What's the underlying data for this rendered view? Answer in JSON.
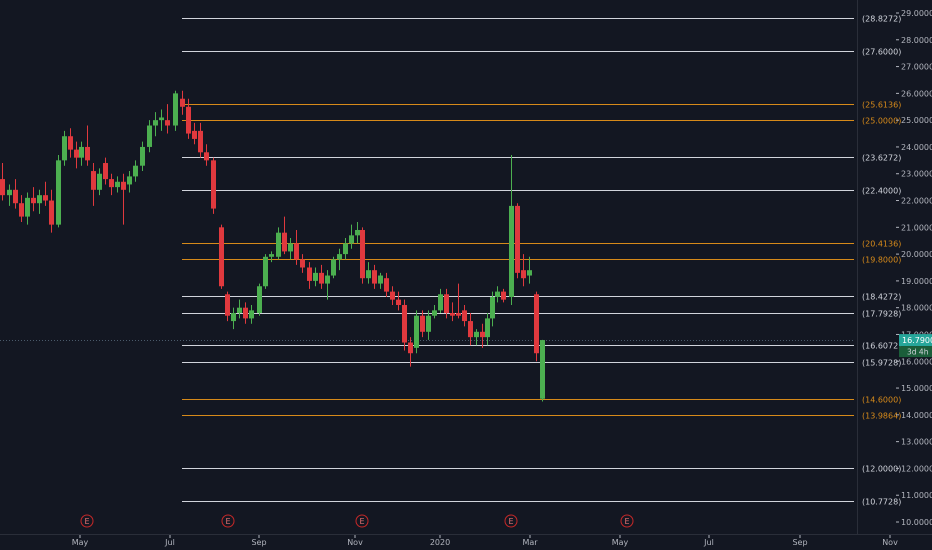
{
  "colors": {
    "background": "#131722",
    "up": "#4caf50",
    "down": "#e0393e",
    "white_level": "#d1d4dc",
    "orange_level": "#d68a1a",
    "axis_text": "#b2b5be",
    "price_tag": "#26a69a",
    "earnings": "#c62828"
  },
  "chart_data": {
    "type": "candlestick",
    "ylim": [
      9.5,
      29.3
    ],
    "y_ticks": [
      "29.0000",
      "28.0000",
      "27.0000",
      "26.0000",
      "25.0000",
      "24.0000",
      "23.0000",
      "22.0000",
      "21.0000",
      "20.0000",
      "19.0000",
      "18.0000",
      "17.0000",
      "16.0000",
      "15.0000",
      "14.0000",
      "13.0000",
      "12.0000",
      "11.0000",
      "10.0000"
    ],
    "x_ticks": [
      {
        "label": "May",
        "x": 80
      },
      {
        "label": "Jul",
        "x": 170
      },
      {
        "label": "Sep",
        "x": 259
      },
      {
        "label": "Nov",
        "x": 355
      },
      {
        "label": "2020",
        "x": 440
      },
      {
        "label": "Mar",
        "x": 530
      },
      {
        "label": "May",
        "x": 620
      },
      {
        "label": "Jul",
        "x": 709
      },
      {
        "label": "Sep",
        "x": 800
      },
      {
        "label": "Nov",
        "x": 890
      }
    ],
    "levels": [
      {
        "value": 28.8272,
        "label": "(28.8272)",
        "color": "white"
      },
      {
        "value": 27.6,
        "label": "(27.6000)",
        "color": "white"
      },
      {
        "value": 25.6136,
        "label": "(25.6136)",
        "color": "orange"
      },
      {
        "value": 25.0,
        "label": "(25.0000)",
        "color": "orange"
      },
      {
        "value": 23.6272,
        "label": "(23.6272)",
        "color": "white"
      },
      {
        "value": 22.4,
        "label": "(22.4000)",
        "color": "white"
      },
      {
        "value": 20.4136,
        "label": "(20.4136)",
        "color": "orange"
      },
      {
        "value": 19.8,
        "label": "(19.8000)",
        "color": "orange"
      },
      {
        "value": 18.4272,
        "label": "(18.4272)",
        "color": "white"
      },
      {
        "value": 17.7928,
        "label": "(17.7928)",
        "color": "white"
      },
      {
        "value": 16.6072,
        "label": "(16.6072)",
        "color": "white"
      },
      {
        "value": 15.9728,
        "label": "(15.9728)",
        "color": "white"
      },
      {
        "value": 14.6,
        "label": "(14.6000)",
        "color": "orange"
      },
      {
        "value": 13.9864,
        "label": "(13.9864)",
        "color": "orange"
      },
      {
        "value": 12.0,
        "label": "(12.0000)",
        "color": "white"
      },
      {
        "value": 10.7728,
        "label": "(10.7728)",
        "color": "white"
      }
    ],
    "current_price": {
      "value": 16.79,
      "label": "16.7900",
      "timer": "3d 4h"
    },
    "earnings_markers": {
      "label": "E",
      "x": [
        87,
        228,
        362,
        511,
        627
      ]
    },
    "candles": [
      {
        "x": 2,
        "o": 22.8,
        "h": 23.4,
        "l": 22.0,
        "c": 22.2
      },
      {
        "x": 9,
        "o": 22.2,
        "h": 22.6,
        "l": 21.8,
        "c": 22.4
      },
      {
        "x": 15,
        "o": 22.4,
        "h": 22.8,
        "l": 21.7,
        "c": 21.9
      },
      {
        "x": 21,
        "o": 21.9,
        "h": 22.2,
        "l": 21.2,
        "c": 21.4
      },
      {
        "x": 27,
        "o": 21.4,
        "h": 22.3,
        "l": 21.1,
        "c": 22.1
      },
      {
        "x": 33,
        "o": 22.1,
        "h": 22.5,
        "l": 21.6,
        "c": 21.9
      },
      {
        "x": 39,
        "o": 21.9,
        "h": 22.4,
        "l": 21.5,
        "c": 22.2
      },
      {
        "x": 45,
        "o": 22.2,
        "h": 22.7,
        "l": 21.8,
        "c": 22.0
      },
      {
        "x": 51,
        "o": 22.0,
        "h": 22.4,
        "l": 20.8,
        "c": 21.1
      },
      {
        "x": 58,
        "o": 21.1,
        "h": 23.7,
        "l": 21.0,
        "c": 23.5
      },
      {
        "x": 64,
        "o": 23.5,
        "h": 24.6,
        "l": 23.3,
        "c": 24.4
      },
      {
        "x": 70,
        "o": 24.4,
        "h": 24.7,
        "l": 23.6,
        "c": 23.9
      },
      {
        "x": 76,
        "o": 23.9,
        "h": 24.2,
        "l": 23.2,
        "c": 23.6
      },
      {
        "x": 81,
        "o": 23.6,
        "h": 24.2,
        "l": 23.3,
        "c": 24.0
      },
      {
        "x": 87,
        "o": 24.0,
        "h": 24.8,
        "l": 23.3,
        "c": 23.5
      },
      {
        "x": 93,
        "o": 23.1,
        "h": 23.4,
        "l": 21.8,
        "c": 22.4
      },
      {
        "x": 99,
        "o": 22.4,
        "h": 23.2,
        "l": 22.2,
        "c": 23.0
      },
      {
        "x": 105,
        "o": 23.4,
        "h": 23.6,
        "l": 22.6,
        "c": 22.8
      },
      {
        "x": 111,
        "o": 22.8,
        "h": 23.0,
        "l": 22.2,
        "c": 22.5
      },
      {
        "x": 117,
        "o": 22.5,
        "h": 22.9,
        "l": 22.3,
        "c": 22.7
      },
      {
        "x": 123,
        "o": 22.7,
        "h": 23.0,
        "l": 21.1,
        "c": 22.4
      },
      {
        "x": 129,
        "o": 22.6,
        "h": 23.1,
        "l": 22.3,
        "c": 22.9
      },
      {
        "x": 135,
        "o": 22.9,
        "h": 23.5,
        "l": 22.7,
        "c": 23.3
      },
      {
        "x": 142,
        "o": 23.3,
        "h": 24.2,
        "l": 23.1,
        "c": 24.0
      },
      {
        "x": 149,
        "o": 24.0,
        "h": 25.0,
        "l": 23.8,
        "c": 24.8
      },
      {
        "x": 155,
        "o": 24.8,
        "h": 25.3,
        "l": 24.4,
        "c": 25.0
      },
      {
        "x": 161,
        "o": 25.0,
        "h": 25.4,
        "l": 24.6,
        "c": 25.1
      },
      {
        "x": 167,
        "o": 25.0,
        "h": 25.6,
        "l": 24.5,
        "c": 24.8
      },
      {
        "x": 175,
        "o": 24.8,
        "h": 26.1,
        "l": 24.6,
        "c": 26.0
      },
      {
        "x": 182,
        "o": 25.8,
        "h": 26.1,
        "l": 25.2,
        "c": 25.5
      },
      {
        "x": 188,
        "o": 25.5,
        "h": 25.8,
        "l": 24.3,
        "c": 24.5
      },
      {
        "x": 194,
        "o": 24.6,
        "h": 24.9,
        "l": 24.1,
        "c": 24.3
      },
      {
        "x": 200,
        "o": 24.6,
        "h": 24.9,
        "l": 23.6,
        "c": 23.8
      },
      {
        "x": 206,
        "o": 23.8,
        "h": 24.1,
        "l": 23.3,
        "c": 23.5
      },
      {
        "x": 213,
        "o": 23.5,
        "h": 23.6,
        "l": 21.5,
        "c": 21.7
      },
      {
        "x": 221,
        "o": 21.0,
        "h": 21.1,
        "l": 18.7,
        "c": 18.8
      },
      {
        "x": 227,
        "o": 18.5,
        "h": 18.6,
        "l": 17.5,
        "c": 17.7
      },
      {
        "x": 233,
        "o": 17.5,
        "h": 18.0,
        "l": 17.2,
        "c": 17.8
      },
      {
        "x": 239,
        "o": 17.8,
        "h": 18.3,
        "l": 17.6,
        "c": 18.0
      },
      {
        "x": 245,
        "o": 18.0,
        "h": 18.2,
        "l": 17.4,
        "c": 17.6
      },
      {
        "x": 251,
        "o": 17.6,
        "h": 18.1,
        "l": 17.4,
        "c": 17.9
      },
      {
        "x": 259,
        "o": 17.8,
        "h": 18.9,
        "l": 17.7,
        "c": 18.8
      },
      {
        "x": 265,
        "o": 18.8,
        "h": 20.0,
        "l": 18.7,
        "c": 19.9
      },
      {
        "x": 271,
        "o": 19.9,
        "h": 20.1,
        "l": 19.7,
        "c": 20.0
      },
      {
        "x": 278,
        "o": 19.9,
        "h": 21.0,
        "l": 19.8,
        "c": 20.8
      },
      {
        "x": 284,
        "o": 20.8,
        "h": 21.4,
        "l": 20.0,
        "c": 20.1
      },
      {
        "x": 290,
        "o": 20.1,
        "h": 20.6,
        "l": 19.8,
        "c": 20.4
      },
      {
        "x": 296,
        "o": 20.4,
        "h": 20.9,
        "l": 19.6,
        "c": 19.8
      },
      {
        "x": 302,
        "o": 19.8,
        "h": 20.0,
        "l": 19.3,
        "c": 19.5
      },
      {
        "x": 309,
        "o": 19.5,
        "h": 19.7,
        "l": 18.7,
        "c": 19.0
      },
      {
        "x": 315,
        "o": 19.0,
        "h": 19.5,
        "l": 18.8,
        "c": 19.3
      },
      {
        "x": 321,
        "o": 19.3,
        "h": 19.6,
        "l": 18.7,
        "c": 18.9
      },
      {
        "x": 327,
        "o": 18.9,
        "h": 19.4,
        "l": 18.3,
        "c": 19.2
      },
      {
        "x": 333,
        "o": 19.2,
        "h": 19.9,
        "l": 19.1,
        "c": 19.8
      },
      {
        "x": 339,
        "o": 19.8,
        "h": 20.2,
        "l": 19.4,
        "c": 20.0
      },
      {
        "x": 345,
        "o": 20.0,
        "h": 20.6,
        "l": 19.8,
        "c": 20.4
      },
      {
        "x": 351,
        "o": 20.4,
        "h": 21.1,
        "l": 20.2,
        "c": 20.7
      },
      {
        "x": 357,
        "o": 20.7,
        "h": 21.2,
        "l": 20.4,
        "c": 20.9
      },
      {
        "x": 362,
        "o": 20.9,
        "h": 21.0,
        "l": 18.9,
        "c": 19.1
      },
      {
        "x": 368,
        "o": 19.1,
        "h": 19.7,
        "l": 18.9,
        "c": 19.4
      },
      {
        "x": 374,
        "o": 19.4,
        "h": 19.6,
        "l": 18.7,
        "c": 18.9
      },
      {
        "x": 380,
        "o": 18.9,
        "h": 19.3,
        "l": 18.7,
        "c": 19.2
      },
      {
        "x": 386,
        "o": 19.1,
        "h": 19.3,
        "l": 18.4,
        "c": 18.6
      },
      {
        "x": 392,
        "o": 18.6,
        "h": 18.8,
        "l": 18.1,
        "c": 18.3
      },
      {
        "x": 398,
        "o": 18.3,
        "h": 18.6,
        "l": 17.9,
        "c": 18.1
      },
      {
        "x": 404,
        "o": 18.1,
        "h": 18.3,
        "l": 16.4,
        "c": 16.7
      },
      {
        "x": 410,
        "o": 16.7,
        "h": 16.9,
        "l": 15.8,
        "c": 16.3
      },
      {
        "x": 416,
        "o": 16.5,
        "h": 17.9,
        "l": 16.3,
        "c": 17.7
      },
      {
        "x": 422,
        "o": 17.7,
        "h": 17.9,
        "l": 16.9,
        "c": 17.1
      },
      {
        "x": 428,
        "o": 17.1,
        "h": 17.9,
        "l": 16.8,
        "c": 17.7
      },
      {
        "x": 434,
        "o": 17.7,
        "h": 18.1,
        "l": 17.6,
        "c": 17.9
      },
      {
        "x": 440,
        "o": 17.9,
        "h": 18.7,
        "l": 17.8,
        "c": 18.5
      },
      {
        "x": 446,
        "o": 18.5,
        "h": 18.7,
        "l": 17.6,
        "c": 17.8
      },
      {
        "x": 452,
        "o": 17.8,
        "h": 18.2,
        "l": 17.5,
        "c": 17.7
      },
      {
        "x": 458,
        "o": 17.8,
        "h": 18.9,
        "l": 17.6,
        "c": 17.7
      },
      {
        "x": 464,
        "o": 17.9,
        "h": 18.1,
        "l": 17.3,
        "c": 17.5
      },
      {
        "x": 470,
        "o": 17.5,
        "h": 17.8,
        "l": 16.6,
        "c": 16.9
      },
      {
        "x": 476,
        "o": 16.9,
        "h": 17.2,
        "l": 16.6,
        "c": 17.1
      },
      {
        "x": 482,
        "o": 17.1,
        "h": 17.4,
        "l": 16.5,
        "c": 16.9
      },
      {
        "x": 487,
        "o": 16.9,
        "h": 17.8,
        "l": 16.6,
        "c": 17.6
      },
      {
        "x": 492,
        "o": 17.6,
        "h": 18.6,
        "l": 17.3,
        "c": 18.4
      },
      {
        "x": 497,
        "o": 18.4,
        "h": 18.8,
        "l": 18.2,
        "c": 18.6
      },
      {
        "x": 503,
        "o": 18.6,
        "h": 18.7,
        "l": 18.2,
        "c": 18.3
      },
      {
        "x": 511,
        "o": 18.4,
        "h": 23.7,
        "l": 18.1,
        "c": 21.8
      },
      {
        "x": 517,
        "o": 21.8,
        "h": 21.9,
        "l": 19.1,
        "c": 19.3
      },
      {
        "x": 523,
        "o": 19.4,
        "h": 20.0,
        "l": 18.8,
        "c": 19.1
      },
      {
        "x": 529,
        "o": 19.2,
        "h": 19.9,
        "l": 18.9,
        "c": 19.4
      },
      {
        "x": 536,
        "o": 18.5,
        "h": 18.6,
        "l": 16.0,
        "c": 16.3
      },
      {
        "x": 542,
        "o": 14.6,
        "h": 16.8,
        "l": 14.5,
        "c": 16.79
      }
    ]
  }
}
